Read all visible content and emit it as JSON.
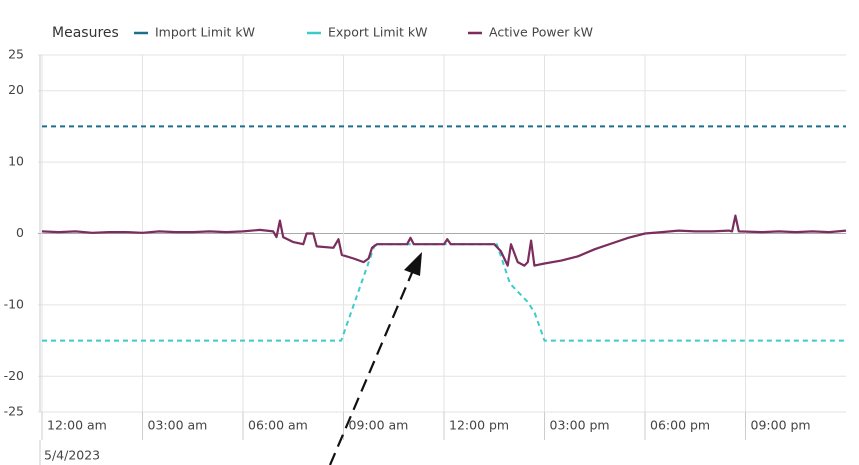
{
  "chart_data": {
    "type": "line",
    "legend_title": "Measures",
    "date_label": "5/4/2023",
    "xlim": [
      0,
      24
    ],
    "xticks": [
      {
        "value": 0,
        "label": "12:00 am"
      },
      {
        "value": 3,
        "label": "03:00 am"
      },
      {
        "value": 6,
        "label": "06:00 am"
      },
      {
        "value": 9,
        "label": "09:00 am"
      },
      {
        "value": 12,
        "label": "12:00 pm"
      },
      {
        "value": 15,
        "label": "03:00 pm"
      },
      {
        "value": 18,
        "label": "06:00 pm"
      },
      {
        "value": 21,
        "label": "09:00 pm"
      }
    ],
    "ylim": [
      -25,
      25
    ],
    "yticks": [
      25,
      20,
      10,
      0,
      -10,
      -20,
      -25
    ],
    "grid": true,
    "series": [
      {
        "name": "Import Limit kW",
        "color": "#1f6e8c",
        "dashed": true,
        "x": [
          0,
          24
        ],
        "values": [
          15,
          15
        ]
      },
      {
        "name": "Export Limit kW",
        "color": "#3ccbcb",
        "dashed": true,
        "x": [
          0,
          8.93,
          9.94,
          13.58,
          13.97,
          14.48,
          14.7,
          15,
          24
        ],
        "values": [
          -15,
          -15,
          -1.5,
          -1.5,
          -7,
          -9.5,
          -11,
          -15,
          -15
        ]
      },
      {
        "name": "Active Power kW",
        "color": "#7b2d5e",
        "dashed": false,
        "x": [
          0,
          0.5,
          1,
          1.5,
          2,
          2.5,
          3,
          3.5,
          4,
          4.5,
          5,
          5.5,
          6,
          6.5,
          6.9,
          7.0,
          7.1,
          7.2,
          7.5,
          7.8,
          7.9,
          8.1,
          8.2,
          8.7,
          8.85,
          8.95,
          9.3,
          9.6,
          9.75,
          9.85,
          10.0,
          10.9,
          11.0,
          11.1,
          12.0,
          12.1,
          12.2,
          13.5,
          13.7,
          13.9,
          14.0,
          14.2,
          14.4,
          14.5,
          14.6,
          14.7,
          15.0,
          15.5,
          16,
          16.5,
          17,
          17.5,
          18,
          18.5,
          19,
          19.5,
          20,
          20.5,
          20.6,
          20.7,
          20.8,
          21.5,
          22,
          22.5,
          23,
          23.5,
          24
        ],
        "values": [
          0.3,
          0.2,
          0.3,
          0.1,
          0.2,
          0.2,
          0.1,
          0.3,
          0.2,
          0.2,
          0.3,
          0.2,
          0.3,
          0.5,
          0.3,
          -0.5,
          1.8,
          -0.5,
          -1.2,
          -1.5,
          0,
          0,
          -1.8,
          -2.0,
          -0.8,
          -3.0,
          -3.5,
          -4.0,
          -3.5,
          -2.0,
          -1.5,
          -1.5,
          -0.6,
          -1.5,
          -1.5,
          -0.8,
          -1.5,
          -1.5,
          -2.5,
          -4.5,
          -1.5,
          -4.0,
          -4.5,
          -4.0,
          -1.0,
          -4.5,
          -4.2,
          -3.8,
          -3.2,
          -2.2,
          -1.4,
          -0.6,
          0.0,
          0.2,
          0.4,
          0.3,
          0.3,
          0.4,
          0.3,
          2.5,
          0.3,
          0.2,
          0.3,
          0.2,
          0.3,
          0.2,
          0.4
        ]
      }
    ]
  }
}
